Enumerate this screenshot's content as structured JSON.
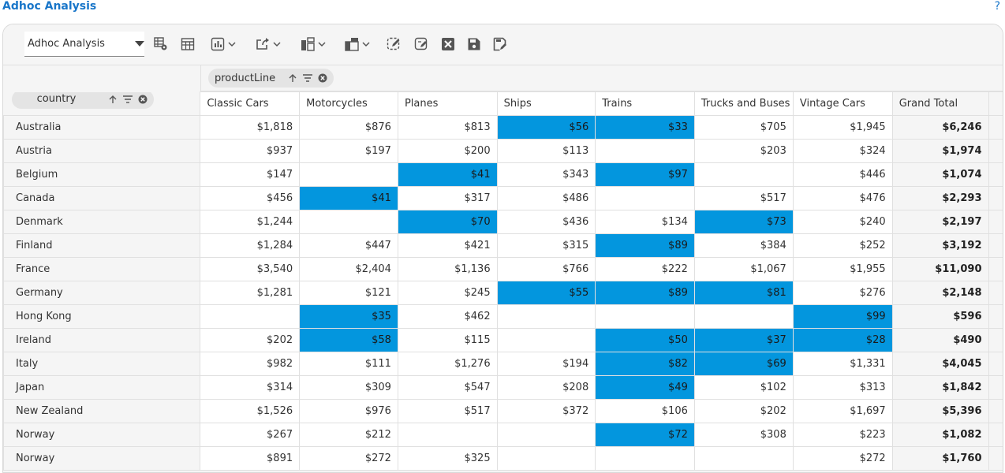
{
  "app_title": "Adhoc Analysis",
  "help_label": "?",
  "toolbar": {
    "report_select_value": "Adhoc Analysis",
    "icons": [
      "grid-settings-icon",
      "table-icon",
      "chart-icon",
      "export-icon",
      "layout-icon",
      "layout-alt-icon",
      "edit-filter-icon",
      "note-edit-icon",
      "excel-icon",
      "save-icon",
      "save-as-icon"
    ]
  },
  "column_field": "productLine",
  "row_field": "country",
  "columns": [
    "Classic Cars",
    "Motorcycles",
    "Planes",
    "Ships",
    "Trains",
    "Trucks and Buses",
    "Vintage Cars",
    "Grand Total"
  ],
  "highlight_color": "#0396de",
  "rows": [
    {
      "country": "Australia",
      "values": [
        "$1,818",
        "$876",
        "$813",
        "$56",
        "$33",
        "$705",
        "$1,945"
      ],
      "total": "$6,246",
      "hl": [
        3,
        4
      ]
    },
    {
      "country": "Austria",
      "values": [
        "$937",
        "$197",
        "$200",
        "$113",
        "",
        "$203",
        "$324"
      ],
      "total": "$1,974",
      "hl": []
    },
    {
      "country": "Belgium",
      "values": [
        "$147",
        "",
        "$41",
        "$343",
        "$97",
        "",
        "$446"
      ],
      "total": "$1,074",
      "hl": [
        2,
        4
      ]
    },
    {
      "country": "Canada",
      "values": [
        "$456",
        "$41",
        "$317",
        "$486",
        "",
        "$517",
        "$476"
      ],
      "total": "$2,293",
      "hl": [
        1
      ]
    },
    {
      "country": "Denmark",
      "values": [
        "$1,244",
        "",
        "$70",
        "$436",
        "$134",
        "$73",
        "$240"
      ],
      "total": "$2,197",
      "hl": [
        2,
        5
      ]
    },
    {
      "country": "Finland",
      "values": [
        "$1,284",
        "$447",
        "$421",
        "$315",
        "$89",
        "$384",
        "$252"
      ],
      "total": "$3,192",
      "hl": [
        4
      ]
    },
    {
      "country": "France",
      "values": [
        "$3,540",
        "$2,404",
        "$1,136",
        "$766",
        "$222",
        "$1,067",
        "$1,955"
      ],
      "total": "$11,090",
      "hl": []
    },
    {
      "country": "Germany",
      "values": [
        "$1,281",
        "$121",
        "$245",
        "$55",
        "$89",
        "$81",
        "$276"
      ],
      "total": "$2,148",
      "hl": [
        3,
        4,
        5
      ]
    },
    {
      "country": "Hong Kong",
      "values": [
        "",
        "$35",
        "$462",
        "",
        "",
        "",
        "$99"
      ],
      "total": "$596",
      "hl": [
        1,
        6
      ]
    },
    {
      "country": "Ireland",
      "values": [
        "$202",
        "$58",
        "$115",
        "",
        "$50",
        "$37",
        "$28"
      ],
      "total": "$490",
      "hl": [
        1,
        4,
        5,
        6
      ]
    },
    {
      "country": "Italy",
      "values": [
        "$982",
        "$111",
        "$1,276",
        "$194",
        "$82",
        "$69",
        "$1,331"
      ],
      "total": "$4,045",
      "hl": [
        4,
        5
      ]
    },
    {
      "country": "Japan",
      "values": [
        "$314",
        "$309",
        "$547",
        "$208",
        "$49",
        "$102",
        "$313"
      ],
      "total": "$1,842",
      "hl": [
        4
      ]
    },
    {
      "country": "New Zealand",
      "values": [
        "$1,526",
        "$976",
        "$517",
        "$372",
        "$106",
        "$202",
        "$1,697"
      ],
      "total": "$5,396",
      "hl": []
    },
    {
      "country": "Norway",
      "values": [
        "$267",
        "$212",
        "",
        "",
        "$72",
        "$308",
        "$223"
      ],
      "total": "$1,082",
      "hl": [
        4
      ]
    },
    {
      "country": "Norway",
      "values": [
        "$891",
        "$272",
        "$325",
        "",
        "",
        "",
        "$272"
      ],
      "total": "$1,760",
      "hl": []
    }
  ]
}
